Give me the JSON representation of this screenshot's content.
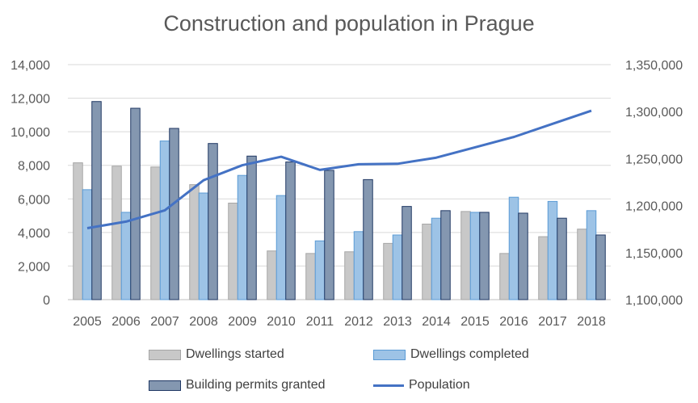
{
  "chart_data": {
    "type": "bar",
    "title": "Construction and population in Prague",
    "categories": [
      "2005",
      "2006",
      "2007",
      "2008",
      "2009",
      "2010",
      "2011",
      "2012",
      "2013",
      "2014",
      "2015",
      "2016",
      "2017",
      "2018"
    ],
    "series": [
      {
        "name": "Dwellings started",
        "axis": "left",
        "type": "bar",
        "color": "#c8c8c8",
        "values": [
          8150,
          7950,
          7900,
          6850,
          5750,
          2900,
          2750,
          2850,
          3350,
          4500,
          5250,
          2750,
          3750,
          4200
        ]
      },
      {
        "name": "Dwellings completed",
        "axis": "left",
        "type": "bar",
        "color": "#9dc3e6",
        "values": [
          6550,
          5200,
          9450,
          6350,
          7400,
          6200,
          3500,
          4050,
          3850,
          4850,
          5200,
          6100,
          5850,
          5300
        ]
      },
      {
        "name": "Building permits granted",
        "axis": "left",
        "type": "bar",
        "color": "#8497b0",
        "values": [
          11800,
          11400,
          10200,
          9300,
          8550,
          8200,
          7700,
          7150,
          5550,
          5300,
          5200,
          5150,
          4850,
          3850
        ]
      },
      {
        "name": "Population",
        "axis": "right",
        "type": "line",
        "color": "#4472c4",
        "values": [
          1176000,
          1183000,
          1195000,
          1227000,
          1243000,
          1252000,
          1238000,
          1244000,
          1244500,
          1251000,
          1262000,
          1273000,
          1287000,
          1301000
        ]
      }
    ],
    "y_left": {
      "min": 0,
      "max": 14000,
      "step": 2000,
      "tick_labels": [
        "0",
        "2,000",
        "4,000",
        "6,000",
        "8,000",
        "10,000",
        "12,000",
        "14,000"
      ]
    },
    "y_right": {
      "min": 1100000,
      "max": 1350000,
      "step": 50000,
      "tick_labels": [
        "1,100,000",
        "1,150,000",
        "1,200,000",
        "1,250,000",
        "1,300,000",
        "1,350,000"
      ]
    },
    "grid": true,
    "legend_position": "bottom"
  }
}
